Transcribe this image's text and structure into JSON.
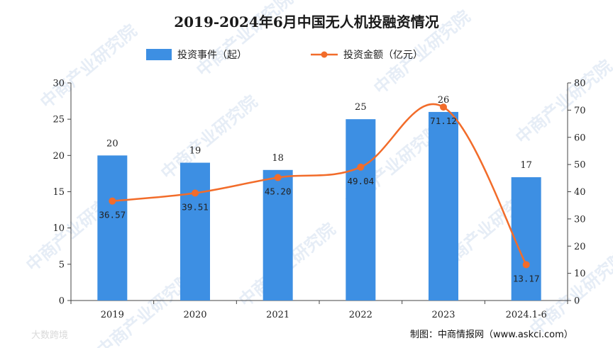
{
  "chart_data": {
    "type": "bar",
    "title": "2019-2024年6月中国无人机投融资情况",
    "categories": [
      "2019",
      "2020",
      "2021",
      "2022",
      "2023",
      "2024.1-6"
    ],
    "series": [
      {
        "name": "投资事件（起）",
        "type": "bar",
        "axis": "left",
        "values": [
          20,
          19,
          18,
          25,
          26,
          17
        ]
      },
      {
        "name": "投资金额（亿元）",
        "type": "line",
        "axis": "right",
        "values": [
          36.57,
          39.51,
          45.2,
          49.04,
          71.12,
          13.17
        ],
        "labels": [
          "36.57",
          "39.51",
          "45.20",
          "49.04",
          "71.12",
          "13.17"
        ]
      }
    ],
    "y_left": {
      "min": 0,
      "max": 30,
      "ticks": [
        0,
        5,
        10,
        15,
        20,
        25,
        30
      ]
    },
    "y_right": {
      "min": 0,
      "max": 80,
      "ticks": [
        0,
        10,
        20,
        30,
        40,
        50,
        60,
        70,
        80
      ]
    },
    "legend_position": "top",
    "grid": false,
    "colors": {
      "bar": "#3d8fe3",
      "line": "#f26c2a"
    }
  },
  "source_text": "制图：中商情报网（www.askci.com）",
  "watermark_text": "中商产业研究院",
  "corner_text": "大数跨境"
}
